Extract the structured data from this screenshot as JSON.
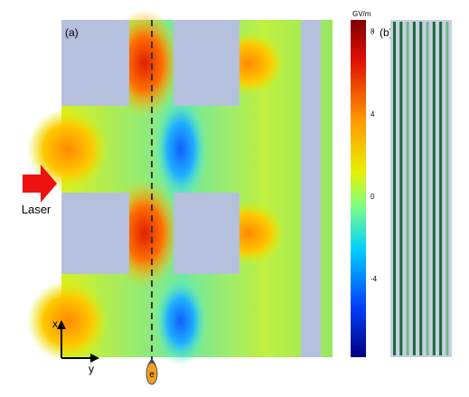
{
  "panel_a": {
    "label": "(a)",
    "laser": "Laser",
    "x_axis": "x",
    "y_axis": "y",
    "particle": "e"
  },
  "colorbar": {
    "unit": "GV/m",
    "ticks": [
      8,
      4,
      0,
      -4
    ]
  },
  "panel_b": {
    "label": "(b)"
  }
}
